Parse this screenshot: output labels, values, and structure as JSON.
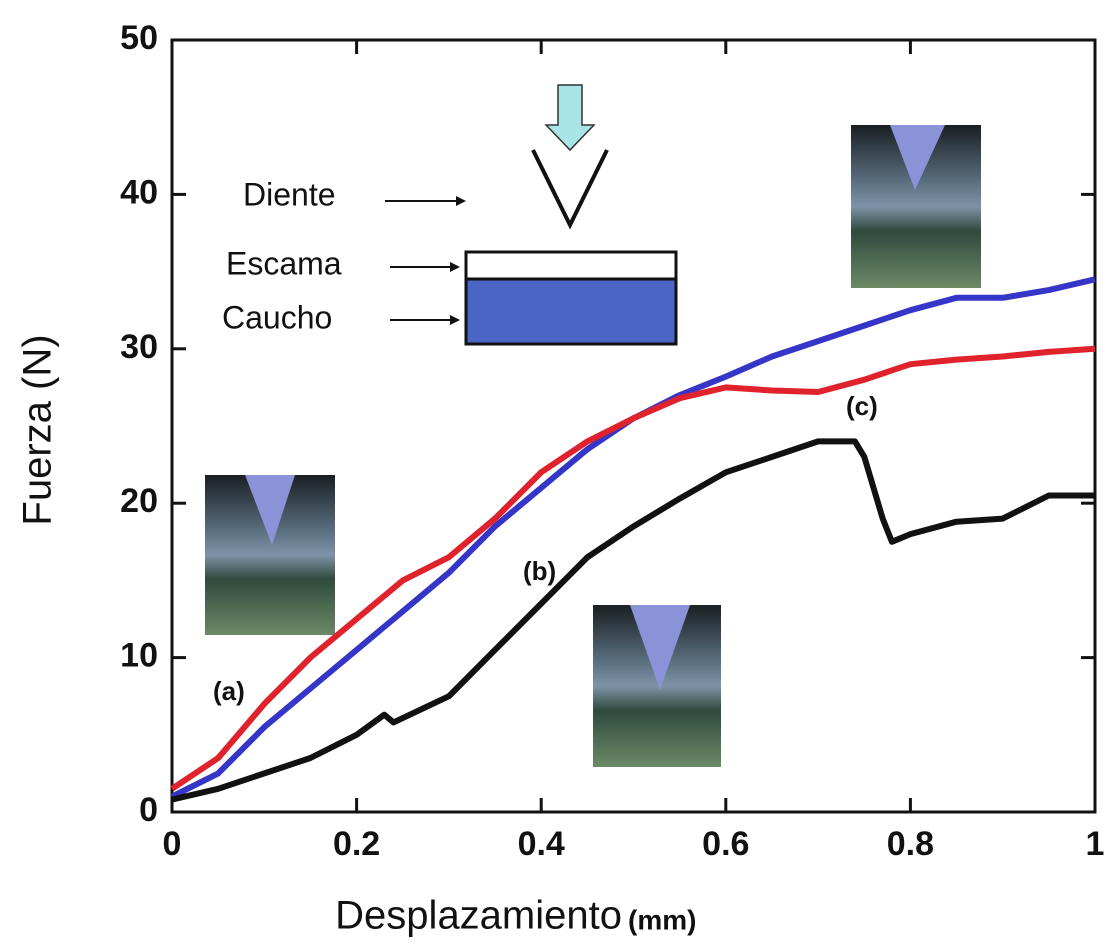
{
  "chart_data": {
    "type": "line",
    "x_label": "Desplazamiento",
    "x_unit": "(mm)",
    "y_label": "Fuerza (N)",
    "xlim": [
      0,
      1
    ],
    "ylim": [
      0,
      50
    ],
    "xticks": [
      0,
      0.2,
      0.4,
      0.6,
      0.8,
      1
    ],
    "yticks": [
      0,
      10,
      20,
      30,
      40,
      50
    ],
    "series": [
      {
        "color": "#3535c8",
        "x": [
          0,
          0.05,
          0.1,
          0.15,
          0.2,
          0.25,
          0.3,
          0.35,
          0.4,
          0.45,
          0.5,
          0.55,
          0.6,
          0.65,
          0.7,
          0.75,
          0.8,
          0.85,
          0.9,
          0.95,
          1
        ],
        "values": [
          1,
          2.5,
          5.5,
          8,
          10.5,
          13,
          15.5,
          18.5,
          21,
          23.5,
          25.5,
          27,
          28.2,
          29.5,
          30.5,
          31.5,
          32.5,
          33.3,
          33.3,
          33.8,
          34.5
        ]
      },
      {
        "color": "#e0222c",
        "x": [
          0,
          0.05,
          0.1,
          0.15,
          0.2,
          0.25,
          0.3,
          0.35,
          0.4,
          0.45,
          0.5,
          0.55,
          0.6,
          0.65,
          0.7,
          0.75,
          0.8,
          0.85,
          0.9,
          0.95,
          1
        ],
        "values": [
          1.5,
          3.5,
          7,
          10,
          12.5,
          15,
          16.5,
          19,
          22,
          24,
          25.5,
          26.8,
          27.5,
          27.3,
          27.2,
          28,
          29,
          29.3,
          29.5,
          29.8,
          30
        ]
      },
      {
        "color": "#111111",
        "x": [
          0,
          0.05,
          0.1,
          0.15,
          0.2,
          0.23,
          0.24,
          0.3,
          0.35,
          0.4,
          0.45,
          0.5,
          0.55,
          0.6,
          0.65,
          0.7,
          0.74,
          0.75,
          0.77,
          0.78,
          0.8,
          0.85,
          0.9,
          0.95,
          1
        ],
        "values": [
          0.8,
          1.5,
          2.5,
          3.5,
          5,
          6.3,
          5.8,
          7.5,
          10.5,
          13.5,
          16.5,
          18.5,
          20.3,
          22,
          23,
          24,
          24,
          23,
          19,
          17.5,
          18,
          18.8,
          19,
          20.5,
          20.5
        ]
      }
    ],
    "annotations": [
      "(a)",
      "(b)",
      "(c)"
    ],
    "diagram_labels": [
      "Diente",
      "Escama",
      "Caucho"
    ]
  }
}
